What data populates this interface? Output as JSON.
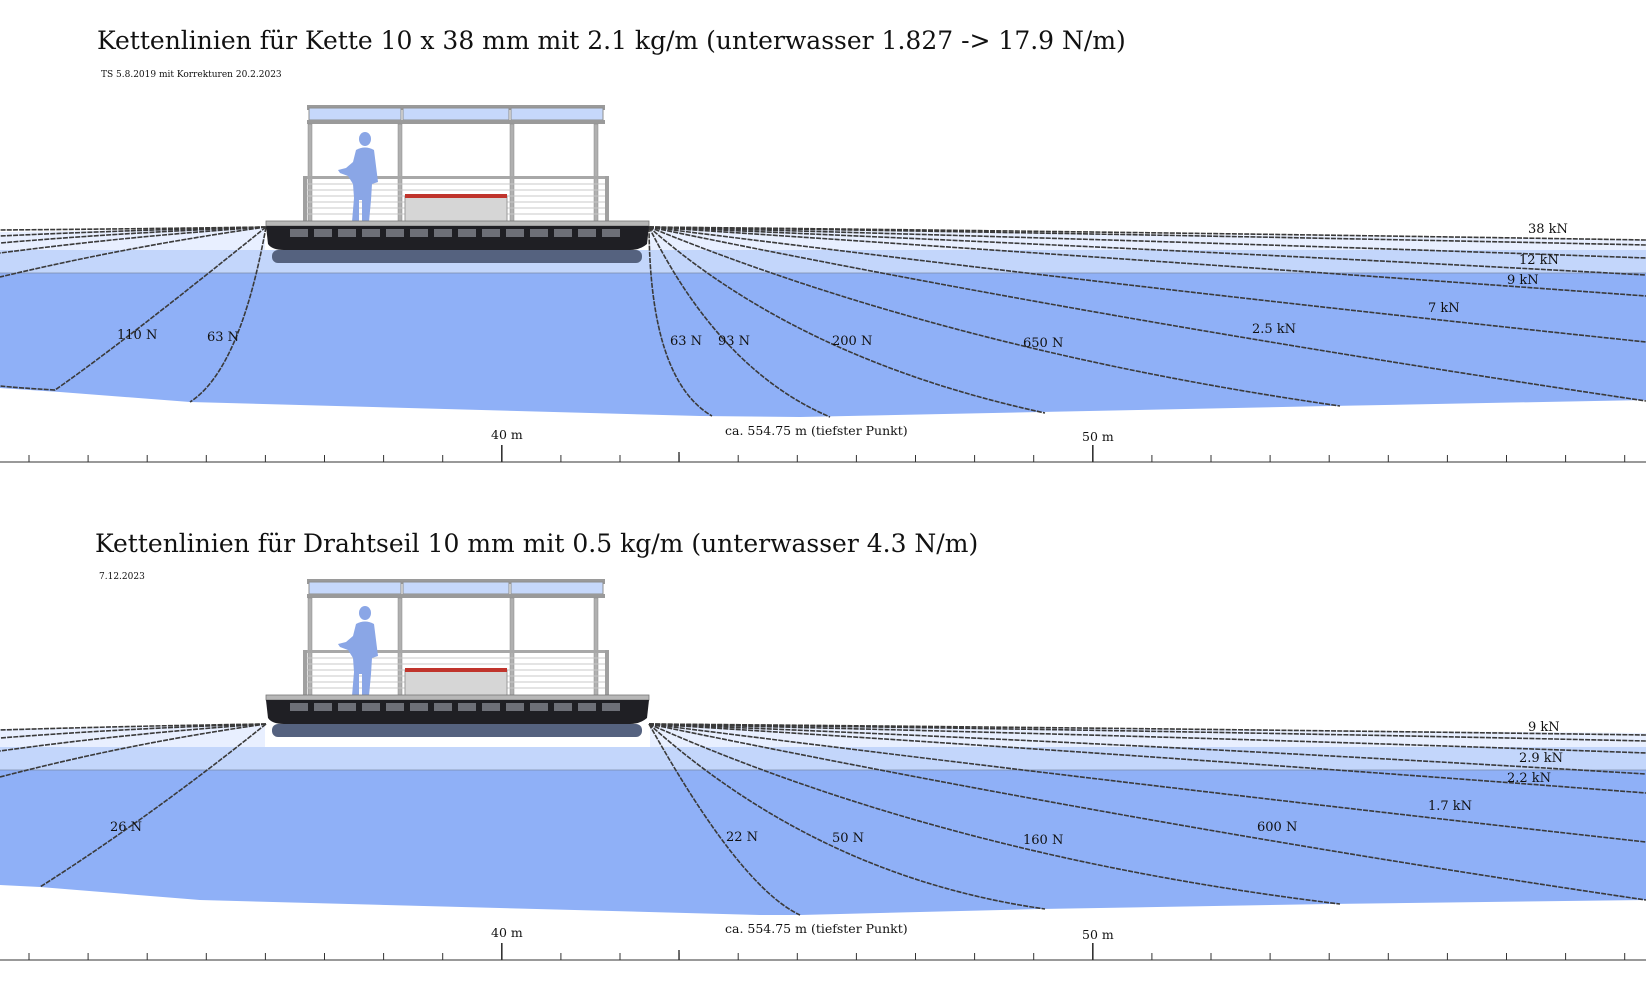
{
  "colors": {
    "water_deep": "#8fb0f7",
    "water_mid": "#c3d6fb",
    "water_top": "#e8efff",
    "rope": "#3a3a3a",
    "hull": "#1f1f24",
    "hull_under": "#55627f",
    "deck": "#b7b7b7",
    "bench_top": "#c0342c",
    "bench": "#d6d6d6",
    "figure": "#8aa6e6",
    "roof_panel": "#c6d8fb"
  },
  "icons": [
    "pontoon-boat-icon",
    "person-figure-icon",
    "bench-icon"
  ],
  "panels": [
    {
      "title": "Kettenlinien für Kette 10 x 38 mm mit 2.1 kg/m (unterwasser 1.827 -> 17.9 N/m)",
      "subtitle": "TS 5.8.2019 mit Korrekturen 20.2.2023",
      "left_labels": [
        "110 N",
        "63 N"
      ],
      "right_labels": [
        "63 N",
        "93 N",
        "200 N",
        "650 N",
        "2.5 kN",
        "7 kN",
        "9 kN",
        "12 kN",
        "38 kN"
      ],
      "bottom_note": "ca. 554.75 m (tiefster Punkt)",
      "axis_labels": [
        "40 m",
        "50 m"
      ]
    },
    {
      "title": "Kettenlinien für Drahtseil 10 mm mit 0.5 kg/m (unterwasser 4.3 N/m)",
      "subtitle": "7.12.2023",
      "left_labels": [
        "26 N"
      ],
      "right_labels": [
        "22 N",
        "50 N",
        "160 N",
        "600 N",
        "1.7 kN",
        "2.2 kN",
        "2.9 kN",
        "9 kN"
      ],
      "bottom_note": "ca. 554.75 m (tiefster Punkt)",
      "axis_labels": [
        "40 m",
        "50 m"
      ]
    }
  ]
}
